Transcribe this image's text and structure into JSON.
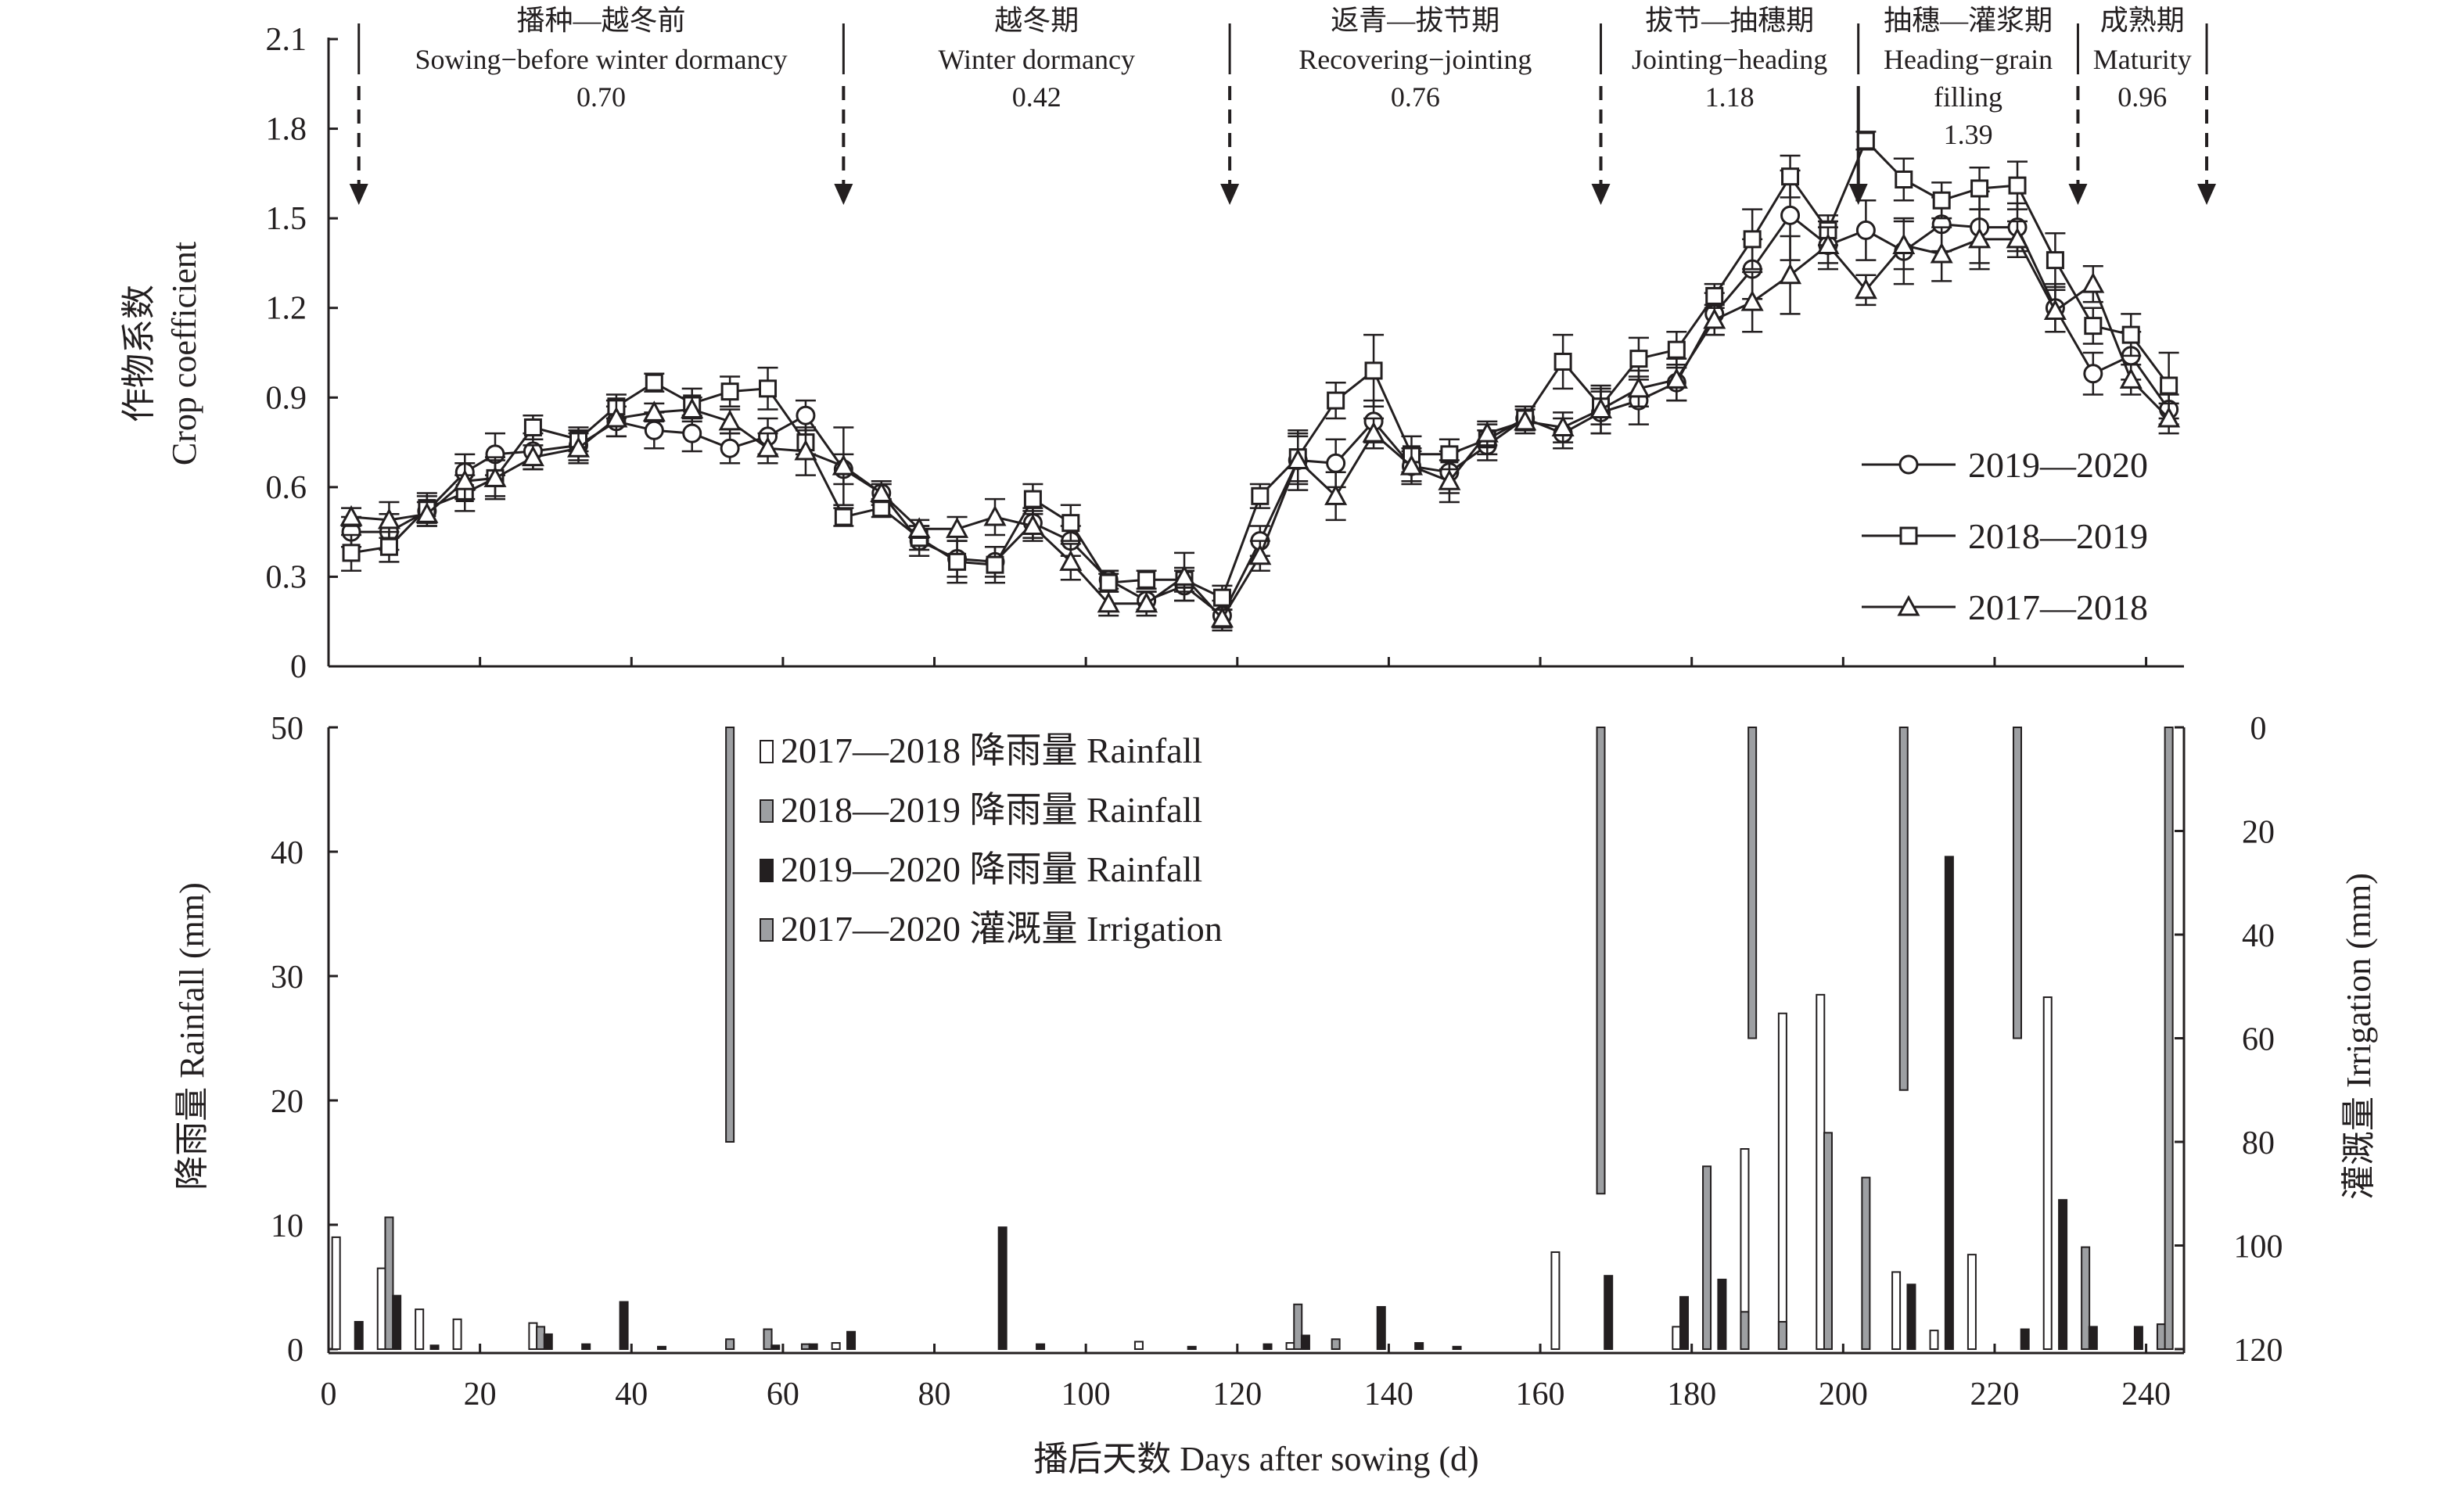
{
  "chart_data": [
    {
      "type": "line",
      "panel": "top",
      "ylabel_zh": "作物系数",
      "ylabel_en": "Crop coefficient",
      "ylim": [
        0,
        2.1
      ],
      "yticks": [
        "0",
        "0.3",
        "0.6",
        "0.9",
        "1.2",
        "1.5",
        "1.8",
        "2.1"
      ],
      "xlim": [
        0,
        245
      ],
      "grid": false,
      "legend_position": "bottom-right",
      "stage_boundaries": [
        4,
        68,
        119,
        168,
        202,
        231,
        248
      ],
      "stages": [
        {
          "zh": "播种—越冬前",
          "en": "Sowing−before winter dormancy",
          "en2": "",
          "kc": "0.70"
        },
        {
          "zh": "越冬期",
          "en": "Winter dormancy",
          "en2": "",
          "kc": "0.42"
        },
        {
          "zh": "返青—拔节期",
          "en": "Recovering−jointing",
          "en2": "",
          "kc": "0.76"
        },
        {
          "zh": "拔节—抽穗期",
          "en": "Jointing−heading",
          "en2": "",
          "kc": "1.18"
        },
        {
          "zh": "抽穗—灌浆期",
          "en": "Heading−grain",
          "en2": "filling",
          "kc": "1.39"
        },
        {
          "zh": "成熟期",
          "en": "Maturity",
          "en2": "",
          "kc": "0.96"
        }
      ],
      "series": [
        {
          "name": "2019—2020",
          "marker": "circle",
          "x": [
            3,
            8,
            13,
            18,
            22,
            27,
            33,
            38,
            43,
            48,
            53,
            58,
            63,
            68,
            73,
            78,
            83,
            88,
            93,
            98,
            103,
            108,
            113,
            118,
            123,
            128,
            133,
            138,
            143,
            148,
            153,
            158,
            163,
            168,
            173,
            178,
            183,
            188,
            193,
            198,
            203,
            208,
            213,
            218,
            223,
            228,
            233,
            238,
            243
          ],
          "y": [
            0.45,
            0.45,
            0.52,
            0.65,
            0.71,
            0.72,
            0.74,
            0.82,
            0.79,
            0.78,
            0.73,
            0.77,
            0.84,
            0.66,
            0.58,
            0.42,
            0.36,
            0.35,
            0.48,
            0.42,
            0.29,
            0.22,
            0.27,
            0.17,
            0.42,
            0.69,
            0.68,
            0.82,
            0.67,
            0.65,
            0.74,
            0.83,
            0.78,
            0.85,
            0.89,
            0.95,
            1.18,
            1.33,
            1.51,
            1.41,
            1.46,
            1.39,
            1.48,
            1.47,
            1.47,
            1.2,
            0.98,
            1.04,
            0.86
          ],
          "err": [
            0.05,
            0.06,
            0.05,
            0.06,
            0.07,
            0.06,
            0.05,
            0.05,
            0.06,
            0.06,
            0.05,
            0.06,
            0.05,
            0.05,
            0.04,
            0.05,
            0.06,
            0.05,
            0.05,
            0.05,
            0.03,
            0.03,
            0.05,
            0.05,
            0.05,
            0.08,
            0.08,
            0.07,
            0.05,
            0.07,
            0.05,
            0.04,
            0.05,
            0.07,
            0.08,
            0.06,
            0.07,
            0.1,
            0.15,
            0.08,
            0.1,
            0.11,
            0.09,
            0.12,
            0.08,
            0.08,
            0.07,
            0.08,
            0.05
          ]
        },
        {
          "name": "2018—2019",
          "marker": "square",
          "x": [
            3,
            8,
            13,
            18,
            22,
            27,
            33,
            38,
            43,
            48,
            53,
            58,
            63,
            68,
            73,
            78,
            83,
            88,
            93,
            98,
            103,
            108,
            113,
            118,
            123,
            128,
            133,
            138,
            143,
            148,
            153,
            158,
            163,
            168,
            173,
            178,
            183,
            188,
            193,
            198,
            203,
            208,
            213,
            218,
            223,
            228,
            233,
            238,
            243
          ],
          "y": [
            0.38,
            0.4,
            0.53,
            0.58,
            0.63,
            0.8,
            0.76,
            0.87,
            0.95,
            0.88,
            0.92,
            0.93,
            0.75,
            0.5,
            0.53,
            0.43,
            0.35,
            0.34,
            0.56,
            0.48,
            0.28,
            0.29,
            0.29,
            0.23,
            0.57,
            0.7,
            0.89,
            0.99,
            0.71,
            0.71,
            0.76,
            0.83,
            1.02,
            0.87,
            1.03,
            1.06,
            1.24,
            1.43,
            1.64,
            1.46,
            1.76,
            1.63,
            1.56,
            1.6,
            1.61,
            1.36,
            1.14,
            1.11,
            0.94
          ],
          "err": [
            0.06,
            0.05,
            0.05,
            0.06,
            0.06,
            0.04,
            0.04,
            0.04,
            0.03,
            0.05,
            0.05,
            0.07,
            0.04,
            0.03,
            0.03,
            0.04,
            0.07,
            0.06,
            0.05,
            0.06,
            0.03,
            0.03,
            0.04,
            0.04,
            0.04,
            0.08,
            0.06,
            0.12,
            0.06,
            0.05,
            0.05,
            0.04,
            0.09,
            0.06,
            0.07,
            0.06,
            0.04,
            0.1,
            0.07,
            0.05,
            0.03,
            0.07,
            0.06,
            0.07,
            0.08,
            0.09,
            0.06,
            0.07,
            0.11
          ]
        },
        {
          "name": "2017—2018",
          "marker": "triangle",
          "x": [
            3,
            8,
            13,
            18,
            22,
            27,
            33,
            38,
            43,
            48,
            53,
            58,
            63,
            68,
            73,
            78,
            83,
            88,
            93,
            98,
            103,
            108,
            113,
            118,
            123,
            128,
            133,
            138,
            143,
            148,
            153,
            158,
            163,
            168,
            173,
            178,
            183,
            188,
            193,
            198,
            203,
            208,
            213,
            218,
            223,
            228,
            233,
            238,
            243
          ],
          "y": [
            0.5,
            0.49,
            0.51,
            0.62,
            0.63,
            0.7,
            0.73,
            0.83,
            0.85,
            0.86,
            0.82,
            0.73,
            0.72,
            0.67,
            0.58,
            0.46,
            0.46,
            0.5,
            0.47,
            0.35,
            0.21,
            0.21,
            0.3,
            0.16,
            0.37,
            0.69,
            0.57,
            0.78,
            0.67,
            0.62,
            0.78,
            0.82,
            0.8,
            0.86,
            0.93,
            0.96,
            1.16,
            1.22,
            1.31,
            1.41,
            1.26,
            1.41,
            1.38,
            1.43,
            1.43,
            1.19,
            1.28,
            0.96,
            0.83
          ],
          "err": [
            0.03,
            0.06,
            0.04,
            0.06,
            0.07,
            0.04,
            0.05,
            0.06,
            0.03,
            0.04,
            0.04,
            0.05,
            0.08,
            0.13,
            0.03,
            0.03,
            0.04,
            0.06,
            0.05,
            0.06,
            0.04,
            0.04,
            0.08,
            0.03,
            0.05,
            0.1,
            0.08,
            0.05,
            0.06,
            0.07,
            0.04,
            0.04,
            0.05,
            0.08,
            0.06,
            0.07,
            0.05,
            0.1,
            0.13,
            0.06,
            0.05,
            0.08,
            0.09,
            0.1,
            0.06,
            0.07,
            0.06,
            0.05,
            0.05
          ]
        }
      ]
    },
    {
      "type": "bar",
      "panel": "bottom",
      "xlabel": "播后天数 Days after sowing (d)",
      "xlim": [
        0,
        245
      ],
      "xticks": [
        "0",
        "20",
        "40",
        "60",
        "80",
        "100",
        "120",
        "140",
        "160",
        "180",
        "200",
        "220",
        "240"
      ],
      "ylabel": "降雨量 Rainfall (mm)",
      "ylim": [
        0,
        50
      ],
      "yticks": [
        "0",
        "10",
        "20",
        "30",
        "40",
        "50"
      ],
      "y2label": "灌溉量 Irrigation (mm)",
      "y2lim": [
        0,
        120
      ],
      "y2_inverted": true,
      "y2ticks": [
        "0",
        "20",
        "40",
        "60",
        "80",
        "100",
        "120"
      ],
      "grid": false,
      "legend_position": "top-left",
      "series": [
        {
          "name": "2017—2018 降雨量 Rainfall",
          "fill": "#ffffff",
          "x": [
            1,
            7,
            12,
            17,
            27,
            53,
            58,
            67,
            107,
            127,
            162,
            178,
            187,
            192,
            197,
            207,
            212,
            217,
            227,
            242
          ],
          "values": [
            9,
            6.5,
            3.2,
            2.4,
            2.1,
            0.6,
            1.6,
            0.5,
            0.6,
            0.5,
            7.8,
            1.8,
            16.1,
            27,
            28.5,
            6.2,
            1.5,
            7.6,
            28.3,
            2
          ]
        },
        {
          "name": "2018—2019 降雨量 Rainfall",
          "fill": "#9d9fa2",
          "x": [
            8,
            28,
            53,
            58,
            63,
            128,
            133,
            182,
            187,
            192,
            198,
            203,
            232,
            242
          ],
          "values": [
            10.6,
            1.8,
            0.8,
            1.6,
            0.4,
            3.6,
            0.8,
            14.7,
            3,
            2.2,
            17.4,
            13.8,
            8.2,
            2
          ]
        },
        {
          "name": "2019—2020 降雨量 Rainfall",
          "fill": "#231f20",
          "x": [
            4,
            9,
            14,
            29,
            34,
            39,
            44,
            59,
            64,
            69,
            89,
            94,
            114,
            124,
            129,
            139,
            144,
            149,
            169,
            179,
            184,
            209,
            214,
            224,
            229,
            233,
            239
          ],
          "values": [
            2.2,
            4.3,
            0.3,
            1.2,
            0.4,
            3.8,
            0.2,
            0.3,
            0.4,
            1.4,
            9.8,
            0.4,
            0.2,
            0.4,
            1.1,
            3.4,
            0.5,
            0.2,
            5.9,
            4.2,
            5.6,
            5.2,
            39.6,
            1.6,
            12,
            1.8,
            1.8
          ]
        },
        {
          "name": "2017—2020 灌溉量 Irrigation",
          "fill": "#9d9fa2",
          "x": [
            53,
            168,
            188,
            208,
            223,
            243
          ],
          "values": [
            80,
            90,
            60,
            70,
            60,
            120
          ]
        }
      ]
    }
  ]
}
